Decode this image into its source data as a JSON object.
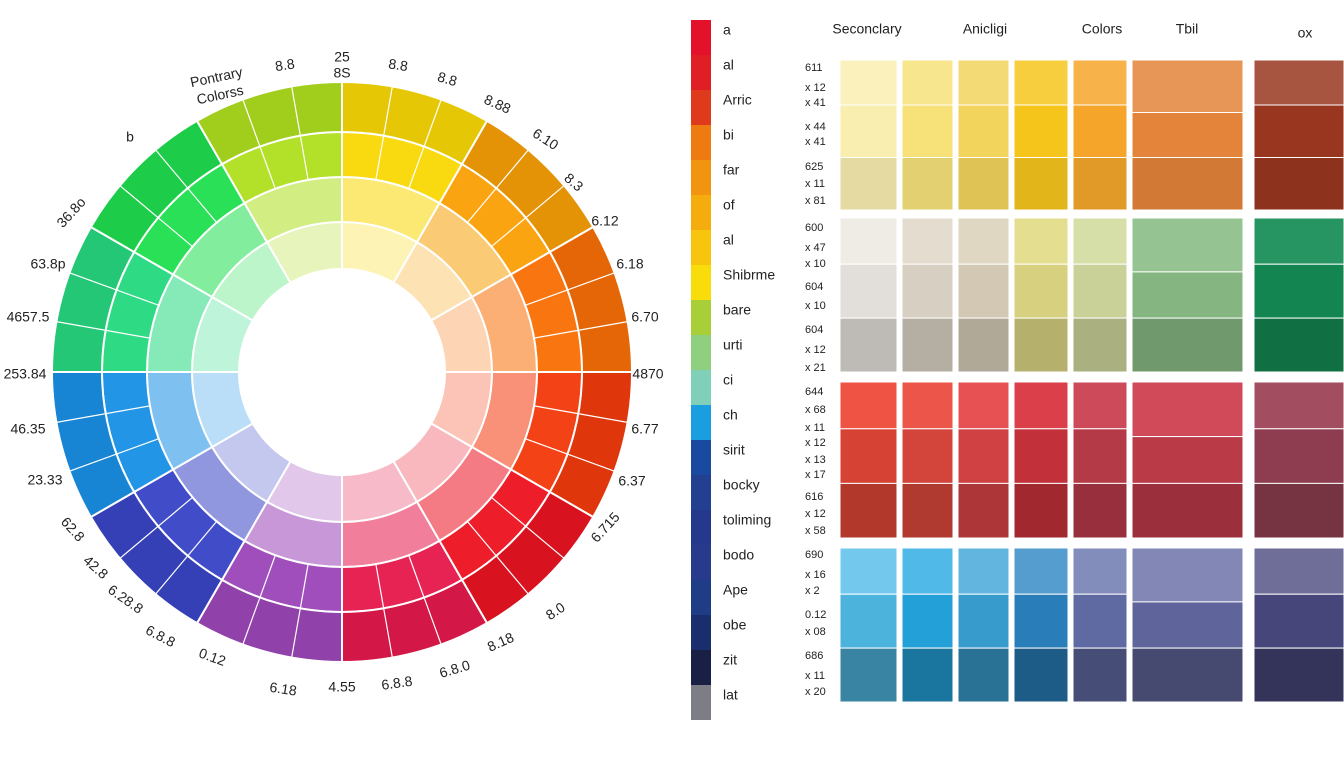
{
  "wheel": {
    "title": [
      "Pontrary",
      "Colorss"
    ],
    "labels": [
      "b",
      "36.8o",
      "63.8p",
      "4657.5",
      "253.84",
      "46.35",
      "23.33",
      "62.8",
      "42.8",
      "6.28.8",
      "6.8.8",
      "0.12",
      "6.18",
      "4.55",
      "6.8.8",
      "6.8.0",
      "8.18",
      "8.0",
      "6.715",
      "6.37",
      "6.77",
      "4870",
      "6.70",
      "6.18",
      "6.12",
      "8.3",
      "6.10",
      "8.88",
      "8.8",
      "8.8",
      "25",
      "8S",
      "8.8"
    ]
  },
  "legend": {
    "items": [
      "a",
      "al",
      "Arric",
      "bi",
      "far",
      "of",
      "al",
      "Shibrme",
      "bare",
      "urti",
      "ci",
      "ch",
      "sirit",
      "bocky",
      "toliming",
      "bodo",
      "Ape",
      "obe",
      "zit",
      "lat"
    ]
  },
  "table": {
    "headers": [
      "Seconclary",
      "Anicligi",
      "Colors",
      "Tbil",
      "ox"
    ],
    "row_labels": [
      [
        "611",
        "x 12",
        "x 41",
        "x 44",
        "x 41",
        "625",
        "x 11",
        "x 81"
      ],
      [
        "600",
        "x 47",
        "x 10",
        "604",
        "x 10",
        "604",
        "x 12",
        "x 21"
      ],
      [
        "644",
        "x 68",
        "x 11",
        "x 12",
        "x 13",
        "x 17",
        "616",
        "x 12",
        "x 58"
      ],
      [
        "690",
        "x 16",
        "x 2",
        "0.12",
        "x 08",
        "686",
        "x 11",
        "x 20"
      ]
    ]
  }
}
